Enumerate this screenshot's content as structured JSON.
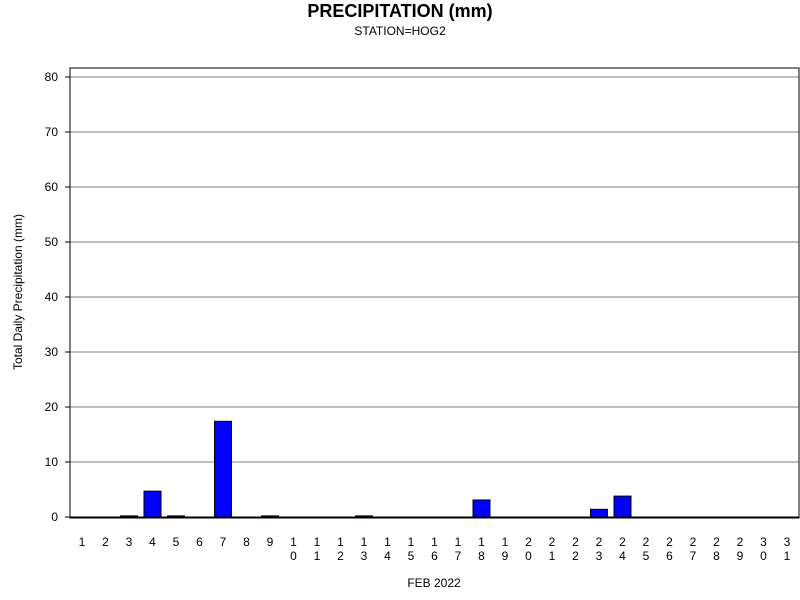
{
  "chart_data": {
    "type": "bar",
    "title": "PRECIPITATION (mm)",
    "subtitle": "STATION=HOG2",
    "xlabel": "FEB 2022",
    "ylabel": "Total Daily Precipitation (mm)",
    "ylim": [
      0,
      80
    ],
    "yticks": [
      0,
      10,
      20,
      30,
      40,
      50,
      60,
      70,
      80
    ],
    "grid": true,
    "bar_color": "#0000ff",
    "categories": [
      "1",
      "2",
      "3",
      "4",
      "5",
      "6",
      "7",
      "8",
      "9",
      "10",
      "11",
      "12",
      "13",
      "14",
      "15",
      "16",
      "17",
      "18",
      "19",
      "20",
      "21",
      "22",
      "23",
      "24",
      "25",
      "26",
      "27",
      "28",
      "29",
      "30",
      "31"
    ],
    "values": [
      0,
      0,
      0.2,
      4.7,
      0.2,
      0,
      17.4,
      0,
      0.2,
      0,
      0,
      0,
      0.2,
      0,
      0,
      0,
      0,
      3.1,
      0,
      0,
      0,
      0,
      1.4,
      3.8,
      0,
      0,
      0,
      0,
      0,
      0,
      0
    ]
  }
}
